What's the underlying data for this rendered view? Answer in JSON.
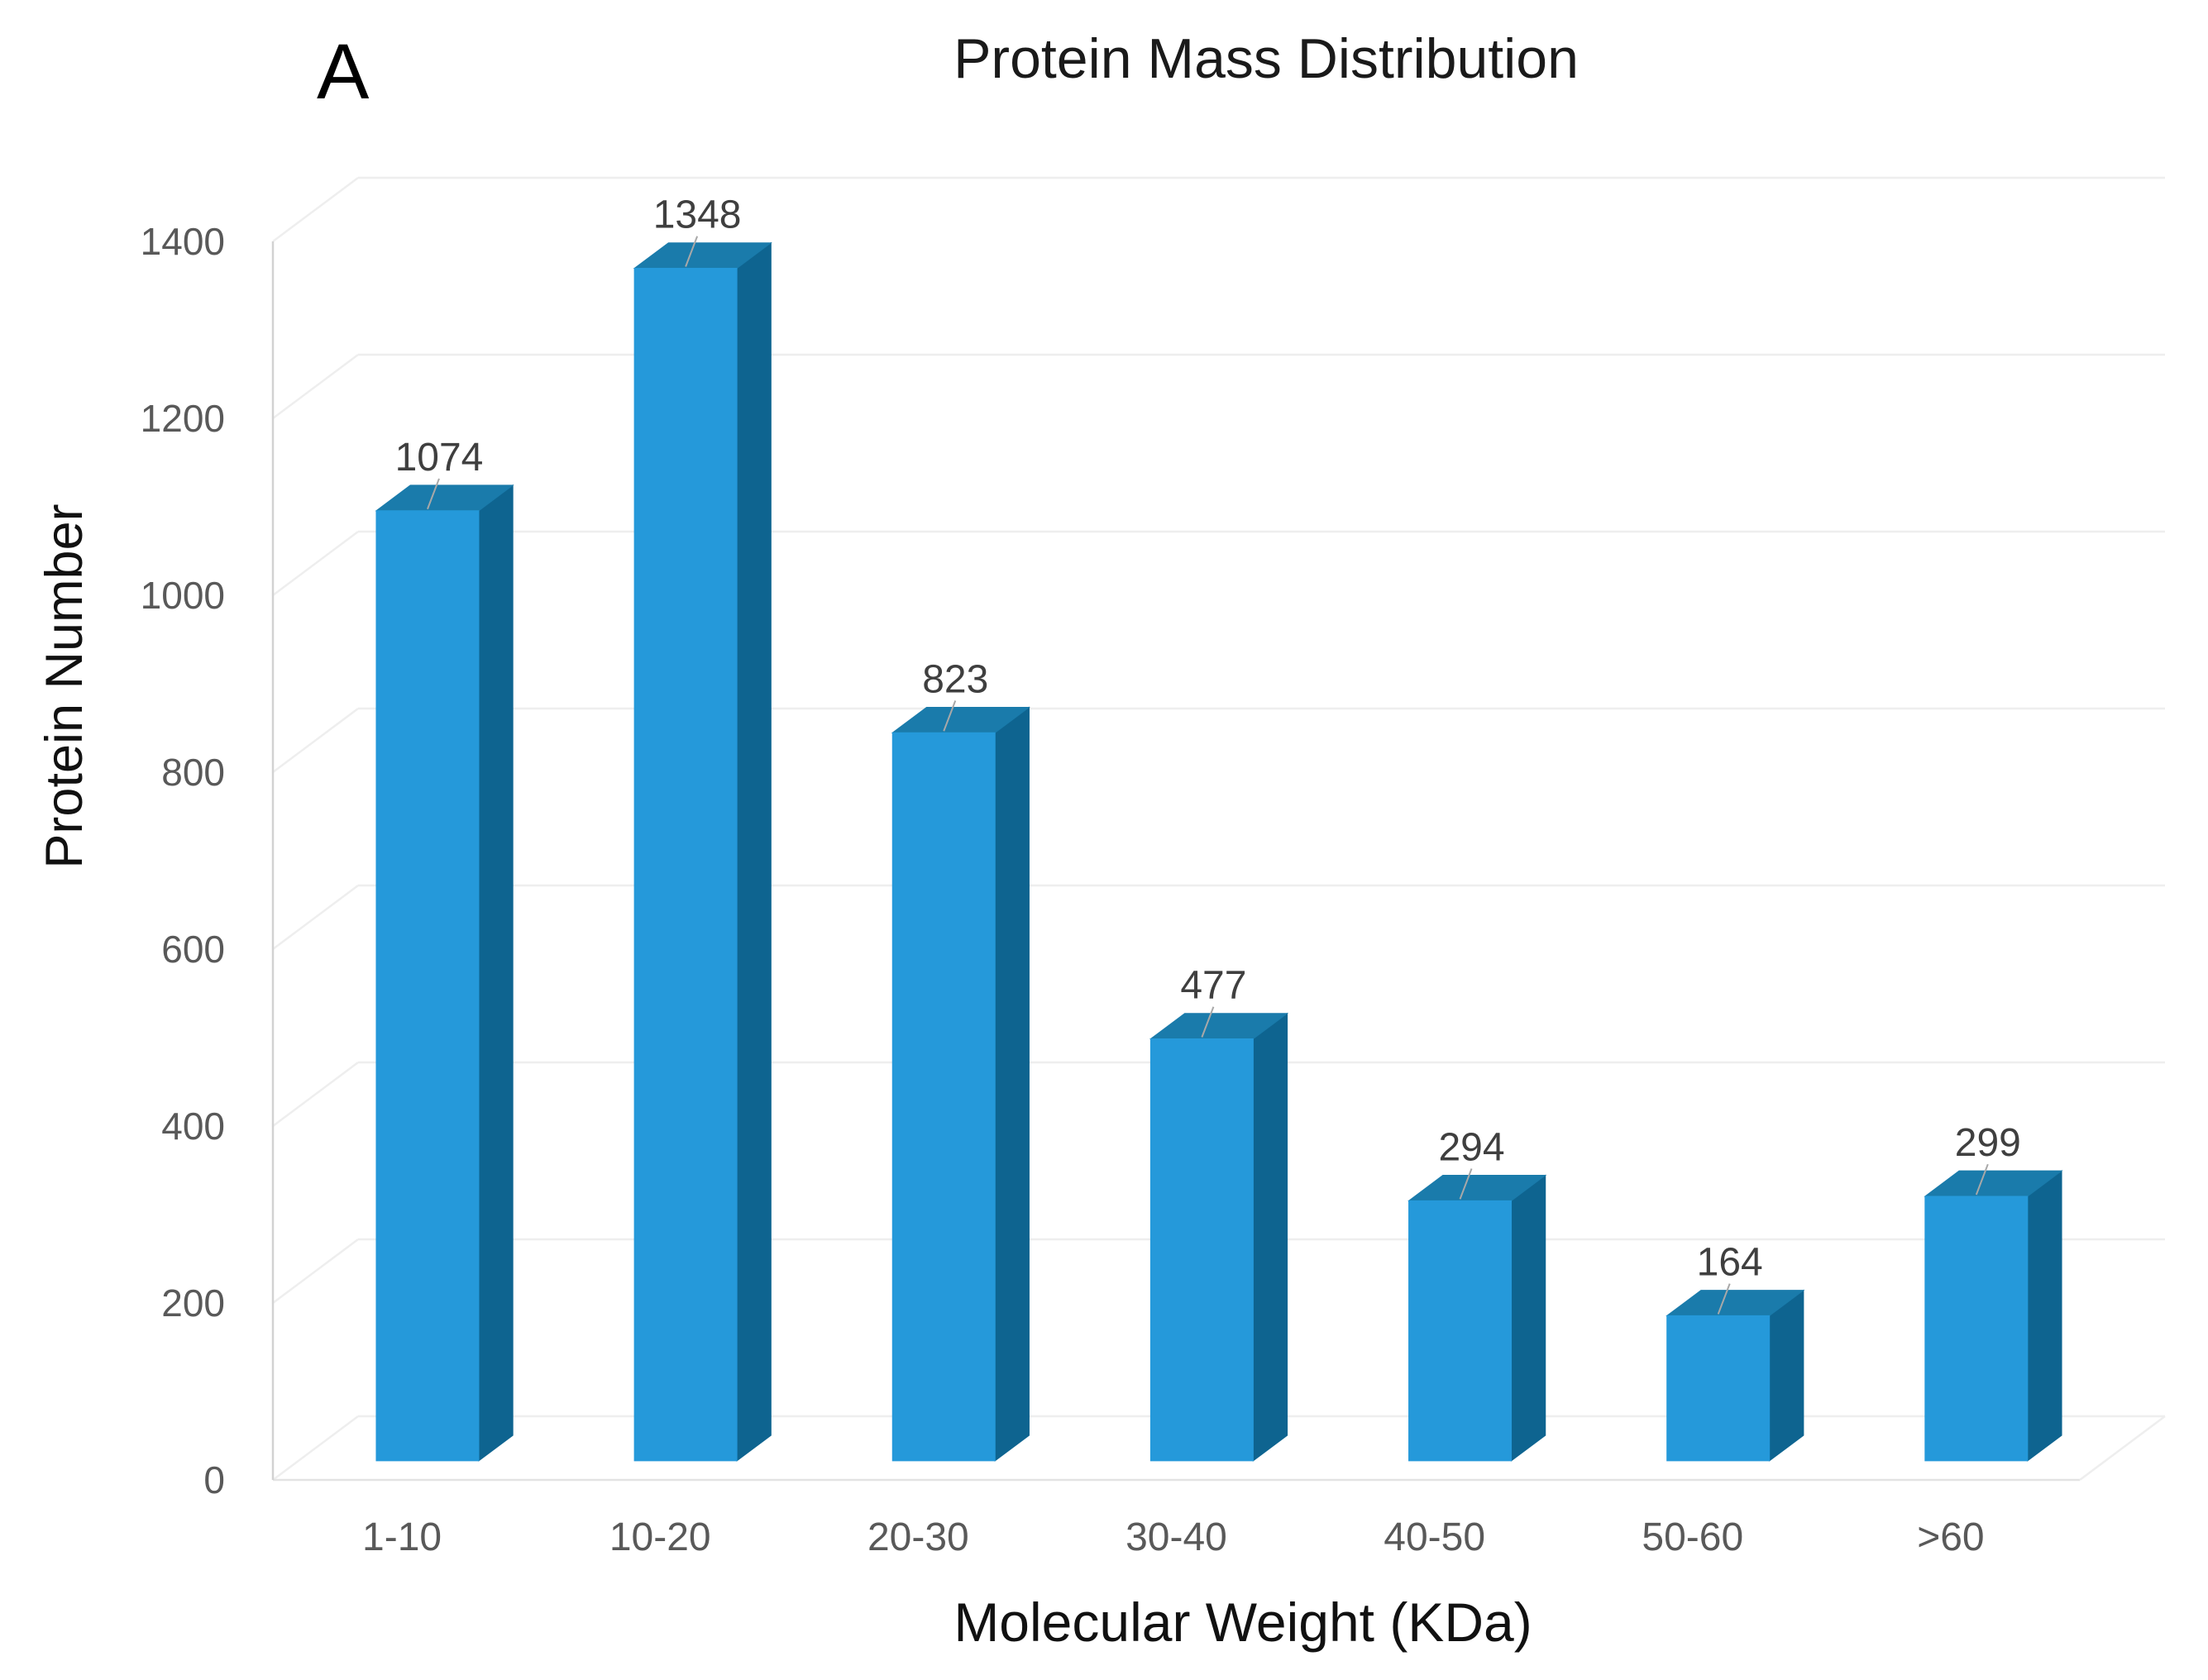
{
  "figure": {
    "panel_label": "A",
    "title": "Protein Mass Distribution",
    "x_axis_title": "Molecular Weight (KDa)",
    "y_axis_title": "Protein Number"
  },
  "chart_data": {
    "type": "bar",
    "style": "3d-column",
    "title": "Protein Mass Distribution",
    "categories": [
      "1-10",
      "10-20",
      "20-30",
      "30-40",
      "40-50",
      "50-60",
      ">60"
    ],
    "values": [
      1074,
      1348,
      823,
      477,
      294,
      164,
      299
    ],
    "xlabel": "Molecular Weight (KDa)",
    "ylabel": "Protein Number",
    "ylim": [
      0,
      1400
    ],
    "ytick_interval": 200,
    "yticks": [
      0,
      200,
      400,
      600,
      800,
      1000,
      1200,
      1400
    ],
    "grid": true,
    "legend": false,
    "data_labels": true,
    "colors": {
      "bar_front": "#2599DA",
      "bar_top": "#1A7BAB",
      "bar_side": "#0E6490",
      "wall_gridline": "#eeeeee",
      "floor_edge": "#e3e3e3",
      "axis_line": "#d2d2d2",
      "tick_label": "#595959",
      "category_label": "#595959",
      "data_label": "#3f3f3f",
      "leader_line": "#a8a8a8",
      "background": "#ffffff"
    }
  }
}
